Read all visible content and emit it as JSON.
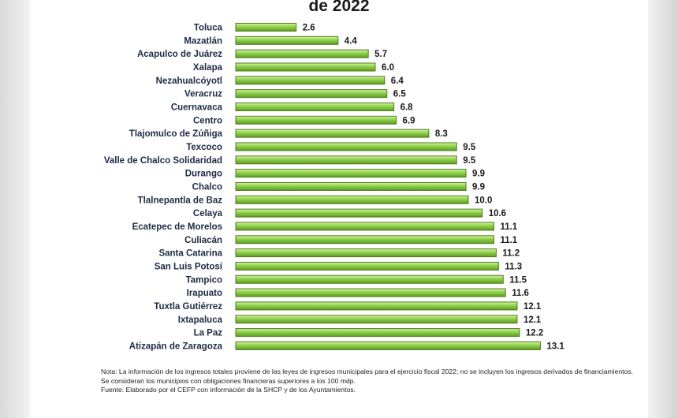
{
  "chart_data": {
    "type": "bar",
    "orientation": "horizontal",
    "title": "de 2022",
    "categories": [
      "Toluca",
      "Mazatlán",
      "Acapulco de Juárez",
      "Xalapa",
      "Nezahualcóyotl",
      "Veracruz",
      "Cuernavaca",
      "Centro",
      "Tlajomulco de Zúñiga",
      "Texcoco",
      "Valle de Chalco Solidaridad",
      "Durango",
      "Chalco",
      "Tlalnepantla de Baz",
      "Celaya",
      "Ecatepec de Morelos",
      "Culiacán",
      "Santa Catarina",
      "San Luis Potosí",
      "Tampico",
      "Irapuato",
      "Tuxtla Gutiérrez",
      "Ixtapaluca",
      "La Paz",
      "Atizapán de Zaragoza"
    ],
    "values": [
      2.6,
      4.4,
      5.7,
      6.0,
      6.4,
      6.5,
      6.8,
      6.9,
      8.3,
      9.5,
      9.5,
      9.9,
      9.9,
      10.0,
      10.6,
      11.1,
      11.1,
      11.2,
      11.3,
      11.5,
      11.6,
      12.1,
      12.1,
      12.2,
      13.1
    ],
    "value_labels": [
      "2.6",
      "4.4",
      "5.7",
      "6.0",
      "6.4",
      "6.5",
      "6.8",
      "6.9",
      "8.3",
      "9.5",
      "9.5",
      "9.9",
      "9.9",
      "10.0",
      "10.6",
      "11.1",
      "11.1",
      "11.2",
      "11.3",
      "11.5",
      "11.6",
      "12.1",
      "12.1",
      "12.2",
      "13.1"
    ],
    "xlim": [
      0,
      13.1
    ],
    "grid": false,
    "bar_color": "#8ed14a",
    "bar_edge_color": "#4f7e1c"
  },
  "notes": {
    "line1": "Nota: La información de los ingresos totales proviene de las leyes de ingresos municipales para el ejercicio fiscal 2022; no se incluyen los ingresos derivados de financiamientos.",
    "line2": "Se consideran los municipios con obligaciones financieras superiores a los 100 mdp.",
    "line3": "Fuente: Elaborado por el CEFP con información de la SHCP y de los Ayuntamientos."
  }
}
